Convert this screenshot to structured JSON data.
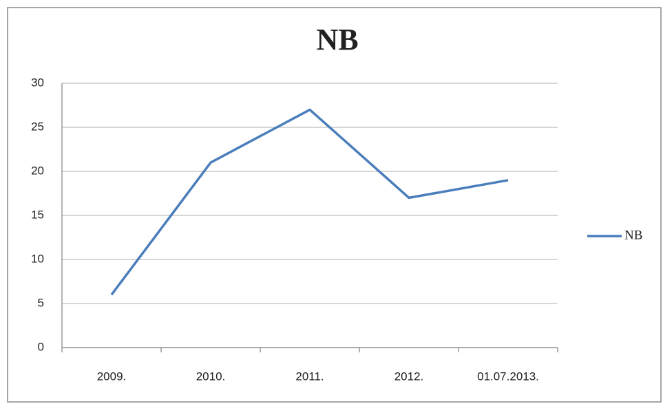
{
  "chart_data": {
    "type": "line",
    "title": "NB",
    "categories": [
      "2009.",
      "2010.",
      "2011.",
      "2012.",
      "01.07.2013."
    ],
    "series": [
      {
        "name": "NB",
        "color": "#4a7ebb",
        "values": [
          6,
          21,
          27,
          17,
          19
        ]
      }
    ],
    "ylim": [
      0,
      30
    ],
    "yticks": [
      0,
      5,
      10,
      15,
      20,
      25,
      30
    ],
    "grid": true,
    "legend": "right"
  }
}
